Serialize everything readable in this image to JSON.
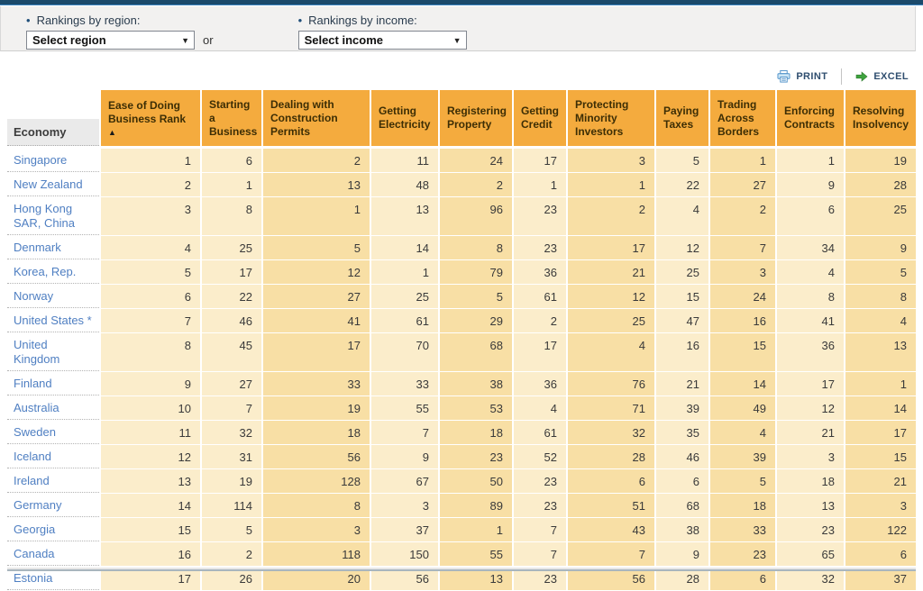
{
  "filters": {
    "region_label": "Rankings by region:",
    "region_value": "Select region",
    "income_label": "Rankings by income:",
    "income_value": "Select income",
    "or_label": "or",
    "caret": "▼"
  },
  "toolbar": {
    "print_label": "PRINT",
    "excel_label": "EXCEL"
  },
  "table": {
    "economy_header": "Economy",
    "sort_indicator": "▲",
    "columns": [
      "Ease of Doing Business Rank",
      "Starting a Business",
      "Dealing with Construction Permits",
      "Getting Electricity",
      "Registering Property",
      "Getting Credit",
      "Protecting Minority Investors",
      "Paying Taxes",
      "Trading Across Borders",
      "Enforcing Contracts",
      "Resolving Insolvency"
    ],
    "rows": [
      {
        "economy": "Singapore",
        "ranks": [
          1,
          6,
          2,
          11,
          24,
          17,
          3,
          5,
          1,
          1,
          19
        ]
      },
      {
        "economy": "New Zealand",
        "ranks": [
          2,
          1,
          13,
          48,
          2,
          1,
          1,
          22,
          27,
          9,
          28
        ]
      },
      {
        "economy": "Hong Kong SAR, China",
        "ranks": [
          3,
          8,
          1,
          13,
          96,
          23,
          2,
          4,
          2,
          6,
          25
        ]
      },
      {
        "economy": "Denmark",
        "ranks": [
          4,
          25,
          5,
          14,
          8,
          23,
          17,
          12,
          7,
          34,
          9
        ]
      },
      {
        "economy": "Korea, Rep.",
        "ranks": [
          5,
          17,
          12,
          1,
          79,
          36,
          21,
          25,
          3,
          4,
          5
        ]
      },
      {
        "economy": "Norway",
        "ranks": [
          6,
          22,
          27,
          25,
          5,
          61,
          12,
          15,
          24,
          8,
          8
        ]
      },
      {
        "economy": "United States *",
        "ranks": [
          7,
          46,
          41,
          61,
          29,
          2,
          25,
          47,
          16,
          41,
          4
        ]
      },
      {
        "economy": "United Kingdom",
        "ranks": [
          8,
          45,
          17,
          70,
          68,
          17,
          4,
          16,
          15,
          36,
          13
        ]
      },
      {
        "economy": "Finland",
        "ranks": [
          9,
          27,
          33,
          33,
          38,
          36,
          76,
          21,
          14,
          17,
          1
        ]
      },
      {
        "economy": "Australia",
        "ranks": [
          10,
          7,
          19,
          55,
          53,
          4,
          71,
          39,
          49,
          12,
          14
        ]
      },
      {
        "economy": "Sweden",
        "ranks": [
          11,
          32,
          18,
          7,
          18,
          61,
          32,
          35,
          4,
          21,
          17
        ]
      },
      {
        "economy": "Iceland",
        "ranks": [
          12,
          31,
          56,
          9,
          23,
          52,
          28,
          46,
          39,
          3,
          15
        ]
      },
      {
        "economy": "Ireland",
        "ranks": [
          13,
          19,
          128,
          67,
          50,
          23,
          6,
          6,
          5,
          18,
          21
        ]
      },
      {
        "economy": "Germany",
        "ranks": [
          14,
          114,
          8,
          3,
          89,
          23,
          51,
          68,
          18,
          13,
          3
        ]
      },
      {
        "economy": "Georgia",
        "ranks": [
          15,
          5,
          3,
          37,
          1,
          7,
          43,
          38,
          33,
          23,
          122
        ]
      },
      {
        "economy": "Canada",
        "ranks": [
          16,
          2,
          118,
          150,
          55,
          7,
          7,
          9,
          23,
          65,
          6
        ]
      },
      {
        "economy": "Estonia",
        "ranks": [
          17,
          26,
          20,
          56,
          13,
          23,
          56,
          28,
          6,
          32,
          37
        ]
      }
    ]
  },
  "colors": {
    "top_bar": "#1b4a6b",
    "panel_bg": "#f2f1f0",
    "header_bg": "#f4ab3e",
    "cell_light": "#fbedcb",
    "cell_dark": "#f8dfa5",
    "economy_link": "#4f7fc2",
    "toolbar_text": "#2f4e6f",
    "print_icon_blue": "#4d90c8",
    "excel_icon_green": "#3fa33f"
  }
}
